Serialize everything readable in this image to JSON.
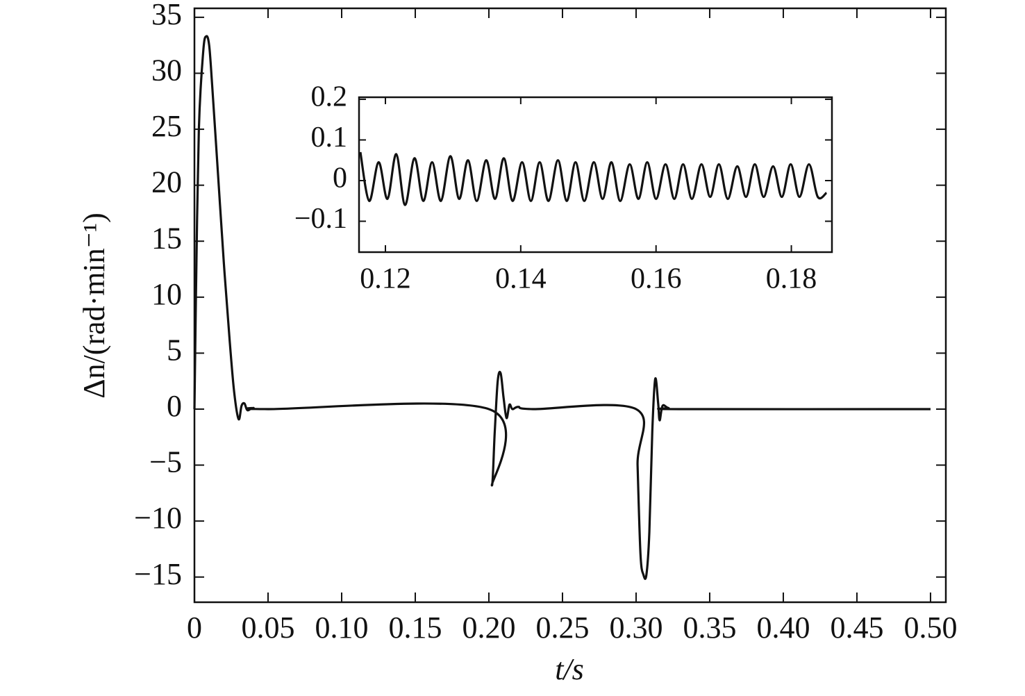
{
  "chart_data": [
    {
      "type": "line",
      "xlabel": "t/s",
      "ylabel": "Δn/(rad·min⁻¹)",
      "xlim": [
        0,
        0.5104
      ],
      "ylim": [
        -17.25,
        35.8
      ],
      "xticks": [
        0,
        0.05,
        {
          "value": 0.1,
          "label": "0.10"
        },
        0.15,
        {
          "value": 0.2,
          "label": "0.20"
        },
        0.25,
        {
          "value": 0.3,
          "label": "0.30"
        },
        0.35,
        {
          "value": 0.4,
          "label": "0.40"
        },
        0.45,
        {
          "value": 0.5,
          "label": "0.50"
        }
      ],
      "yticks": [
        {
          "value": -15,
          "label": "−15"
        },
        {
          "value": -10,
          "label": "−10"
        },
        {
          "value": -5,
          "label": "−5"
        },
        0,
        5,
        10,
        15,
        20,
        25,
        30,
        35
      ],
      "x": [
        0,
        0.001,
        0.003,
        0.006,
        0.008,
        0.01,
        0.012,
        0.016,
        0.02,
        0.024,
        0.027,
        0.03,
        0.032,
        0.034,
        0.036,
        0.04,
        0.05,
        0.2,
        0.202,
        0.204,
        0.206,
        0.208,
        0.21,
        0.212,
        0.214,
        0.216,
        0.22,
        0.23,
        0.3,
        0.301,
        0.303,
        0.305,
        0.307,
        0.309,
        0.311,
        0.313,
        0.315,
        0.316,
        0.318,
        0.322,
        0.33,
        0.5
      ],
      "series": [
        {
          "color": "#111111",
          "values": [
            0,
            10,
            25,
            32,
            33.3,
            32.5,
            29,
            21,
            13,
            6,
            1.5,
            -0.9,
            0.3,
            0.5,
            -0.1,
            0.1,
            0,
            0,
            -6.8,
            -2,
            2.5,
            3.2,
            1,
            -0.8,
            0.4,
            0,
            0.2,
            0,
            0,
            -5,
            -13,
            -14.8,
            -14.8,
            -11,
            -2,
            2.7,
            0.5,
            -1,
            0.3,
            0.1,
            0,
            0
          ]
        }
      ]
    },
    {
      "type": "line",
      "xlim": [
        0.1161,
        0.186
      ],
      "ylim": [
        -0.176,
        0.205
      ],
      "xticks": [
        0.12,
        0.14,
        0.16,
        0.18
      ],
      "yticks": [
        {
          "value": -0.1,
          "label": "−0.1"
        },
        0,
        0.1,
        0.2
      ],
      "x": [
        0.1163,
        0.1176,
        0.119,
        0.1203,
        0.1216,
        0.1229,
        0.1243,
        0.1256,
        0.1269,
        0.1282,
        0.1296,
        0.1309,
        0.1322,
        0.1335,
        0.1349,
        0.1362,
        0.1375,
        0.1388,
        0.1402,
        0.1415,
        0.1428,
        0.1441,
        0.1455,
        0.1468,
        0.1481,
        0.1494,
        0.1508,
        0.1521,
        0.1534,
        0.1547,
        0.1561,
        0.1574,
        0.1587,
        0.16,
        0.1614,
        0.1627,
        0.164,
        0.1653,
        0.1667,
        0.168,
        0.1693,
        0.1706,
        0.172,
        0.1733,
        0.1746,
        0.1759,
        0.1773,
        0.1786,
        0.1799,
        0.1812,
        0.1826,
        0.1839,
        0.1852
      ],
      "series": [
        {
          "color": "#111111",
          "values": [
            0.07,
            -0.05,
            0.045,
            -0.045,
            0.065,
            -0.06,
            0.055,
            -0.05,
            0.045,
            -0.05,
            0.06,
            -0.045,
            0.05,
            -0.05,
            0.05,
            -0.045,
            0.055,
            -0.05,
            0.045,
            -0.05,
            0.045,
            -0.05,
            0.05,
            -0.05,
            0.045,
            -0.05,
            0.045,
            -0.045,
            0.045,
            -0.05,
            0.04,
            -0.045,
            0.045,
            -0.045,
            0.04,
            -0.045,
            0.04,
            -0.045,
            0.04,
            -0.04,
            0.04,
            -0.045,
            0.035,
            -0.04,
            0.04,
            -0.04,
            0.035,
            -0.04,
            0.04,
            -0.04,
            0.04,
            -0.04,
            -0.03
          ]
        }
      ]
    }
  ]
}
